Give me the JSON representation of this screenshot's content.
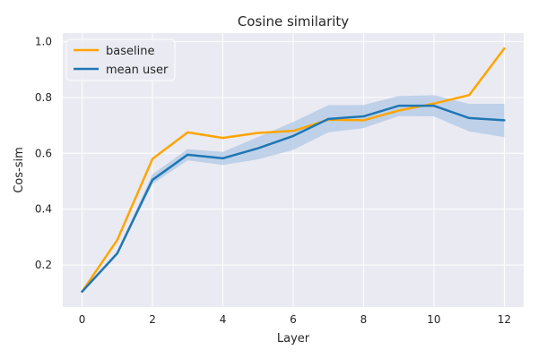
{
  "chart_data": {
    "type": "line",
    "title": "Cosine similarity",
    "xlabel": "Layer",
    "ylabel": "Cos-sim",
    "xlim": [
      -0.55,
      12.55
    ],
    "ylim": [
      0.05,
      1.03
    ],
    "xticks": [
      0,
      2,
      4,
      6,
      8,
      10,
      12
    ],
    "yticks": [
      0.2,
      0.4,
      0.6,
      0.8,
      1.0
    ],
    "ytick_labels": [
      "0.2",
      "0.4",
      "0.6",
      "0.8",
      "1.0"
    ],
    "grid": true,
    "legend_position": "top-left",
    "x": [
      0,
      1,
      2,
      3,
      4,
      5,
      6,
      7,
      8,
      9,
      10,
      11,
      12
    ],
    "series": [
      {
        "name": "baseline",
        "color": "#ffa500",
        "values": [
          0.105,
          0.29,
          0.58,
          0.675,
          0.655,
          0.673,
          0.68,
          0.72,
          0.718,
          0.753,
          0.778,
          0.808,
          0.975
        ]
      },
      {
        "name": "mean user",
        "color": "#1f77b4",
        "values": [
          0.105,
          0.242,
          0.505,
          0.595,
          0.582,
          0.618,
          0.662,
          0.723,
          0.732,
          0.77,
          0.77,
          0.726,
          0.718
        ],
        "band_lower": [
          0.1,
          0.235,
          0.49,
          0.575,
          0.558,
          0.578,
          0.612,
          0.675,
          0.69,
          0.733,
          0.732,
          0.678,
          0.658
        ],
        "band_upper": [
          0.11,
          0.25,
          0.525,
          0.615,
          0.605,
          0.658,
          0.712,
          0.772,
          0.773,
          0.805,
          0.808,
          0.777,
          0.777
        ],
        "band_color": "#b0c8e6"
      }
    ],
    "background_color": "#eaeaf2",
    "grid_color": "#ffffff"
  }
}
